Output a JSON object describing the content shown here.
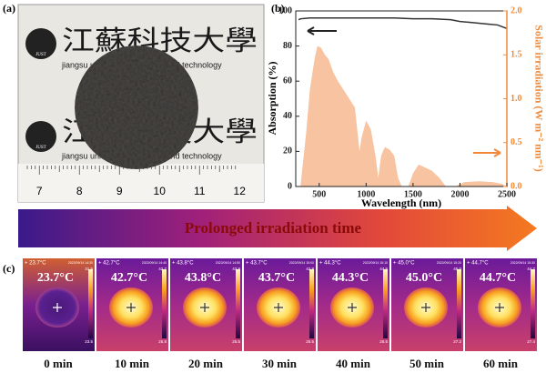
{
  "panel_labels": [
    "(a)",
    "(b)",
    "(c)"
  ],
  "photo": {
    "logo_text": "江蘇科技大學",
    "logo_letters": "JUST",
    "subtitle": "jiangsu university of science and technology",
    "ruler_labels": [
      "7",
      "8",
      "9",
      "10",
      "11",
      "12"
    ]
  },
  "chart_data": {
    "type": "line",
    "xlabel": "Wavelength (nm)",
    "ylabel": "Absorption (%)",
    "y2label": "Solar irradiation (W m⁻² nm⁻¹)",
    "xlim": [
      250,
      2500
    ],
    "xticks": [
      500,
      1000,
      1500,
      2000,
      2500
    ],
    "ylim": [
      0,
      100
    ],
    "yticks": [
      0,
      20,
      40,
      60,
      80,
      100
    ],
    "y2lim": [
      0,
      2.0
    ],
    "y2ticks": [
      {
        "value": 0,
        "label": "0.0"
      },
      0.5,
      {
        "value": 1,
        "label": "1.0"
      },
      1.5,
      {
        "value": 2,
        "label": "2.0"
      }
    ],
    "series": [
      {
        "color": "#333333",
        "x": [
          280,
          300,
          400,
          500,
          700,
          900,
          1100,
          1300,
          1500,
          1700,
          1900,
          2000,
          2100,
          2300,
          2400,
          2500
        ],
        "values": [
          95,
          95.5,
          96,
          96,
          96,
          96,
          96,
          96,
          95.5,
          95.5,
          95,
          94,
          93.5,
          92.5,
          92,
          90
        ]
      },
      {
        "color": "#f7c3a0",
        "axis": "y2",
        "fill": true,
        "x": [
          300,
          330,
          360,
          400,
          450,
          480,
          520,
          560,
          600,
          650,
          700,
          760,
          820,
          880,
          930,
          950,
          1000,
          1050,
          1100,
          1130,
          1160,
          1200,
          1250,
          1300,
          1340,
          1380,
          1450,
          1500,
          1560,
          1620,
          1700,
          1780,
          1850,
          1950,
          2050,
          2200,
          2350,
          2450,
          2500
        ],
        "values": [
          0,
          0.3,
          0.6,
          1.1,
          1.45,
          1.6,
          1.58,
          1.5,
          1.45,
          1.3,
          1.2,
          1.1,
          1.0,
          0.9,
          0.4,
          0.55,
          0.75,
          0.65,
          0.35,
          0.1,
          0.35,
          0.45,
          0.42,
          0.35,
          0.1,
          0,
          0,
          0.15,
          0.25,
          0.22,
          0.18,
          0.1,
          0,
          0,
          0.05,
          0.06,
          0.05,
          0.03,
          0
        ]
      }
    ]
  },
  "banner": "Prolonged irradiation time",
  "thermal": [
    {
      "time": "0 min",
      "temperature": "23.7°C",
      "header": "+ 23.7°C",
      "date": "2022/09/14 14:30",
      "scale_max": "31.5",
      "scale_min": "23.5"
    },
    {
      "time": "10 min",
      "temperature": "42.7°C",
      "header": "+ 42.7°C",
      "date": "2022/09/14 14:40",
      "scale_max": "42.7",
      "scale_min": "25.8"
    },
    {
      "time": "20 min",
      "temperature": "43.8°C",
      "header": "+ 43.8°C",
      "date": "2022/09/14 14:50",
      "scale_max": "43.8",
      "scale_min": "25.5"
    },
    {
      "time": "30 min",
      "temperature": "43.7°C",
      "header": "+ 43.7°C",
      "date": "2022/09/14 15:00",
      "scale_max": "42.8",
      "scale_min": "25.5"
    },
    {
      "time": "40 min",
      "temperature": "44.3°C",
      "header": "+ 44.3°C",
      "date": "2022/09/14 15:10",
      "scale_max": "44.5",
      "scale_min": "26.5"
    },
    {
      "time": "50 min",
      "temperature": "45.0°C",
      "header": "+ 45.0°C",
      "date": "2022/09/14 15:20",
      "scale_max": "45.0",
      "scale_min": "27.2"
    },
    {
      "time": "60 min",
      "temperature": "44.7°C",
      "header": "+ 44.7°C",
      "date": "2022/09/14 15:30",
      "scale_max": "44.7",
      "scale_min": "27.4"
    }
  ]
}
